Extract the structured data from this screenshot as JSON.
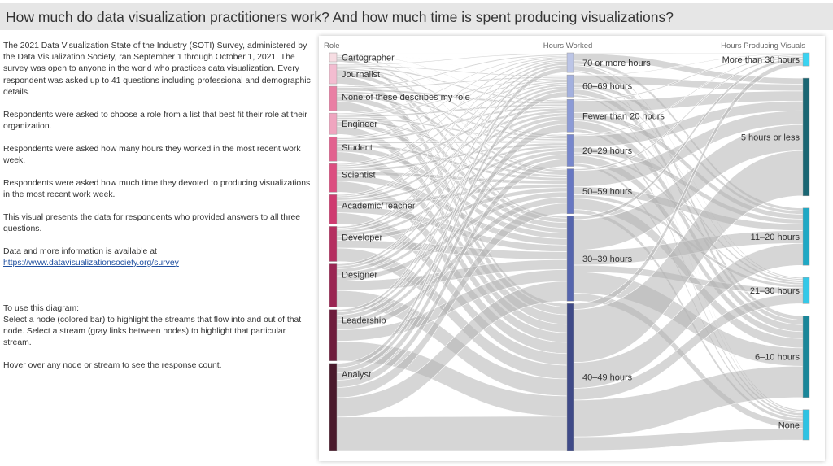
{
  "header": {
    "title": "How much do data visualization practitioners work? And how much time is spent producing visualizations?"
  },
  "description": {
    "paragraphs": [
      "The 2021 Data Visualization State of the Industry (SOTI) Survey, administered by the Data Visualization Society, ran September 1 through October 1, 2021. The survey was open to anyone in the world who practices data visualization. Every respondent was asked up to 41 questions including professional and demographic details.",
      "Respondents were asked to choose a role from a list that best fit their role at their organization.",
      "Respondents were asked how many hours they worked in the most recent work week.",
      "Respondents were asked how much time they devoted to producing visualizations in the most recent work week.",
      "This visual presents the data for respondents who provided answers to all three questions."
    ],
    "data_intro": "Data and more information is available at",
    "link": "https://www.datavisualizationsociety.org/survey",
    "instructions_title": "To use this diagram:",
    "instructions": "Select a node (colored bar) to highlight the streams that flow into and out of that node. Select a stream (gray links between nodes) to highlight that particular stream.",
    "hover_note": "Hover over any node or stream to see the response count."
  },
  "chart_data": {
    "type": "sankey",
    "columns": [
      {
        "label": "Role",
        "nodes": [
          {
            "name": "Cartographer",
            "relative_size": 11,
            "color": "#f7dde3"
          },
          {
            "name": "Journalist",
            "relative_size": 24,
            "color": "#f3bcd0"
          },
          {
            "name": "None of these describes my role",
            "relative_size": 30,
            "color": "#e97fa4"
          },
          {
            "name": "Engineer",
            "relative_size": 26,
            "color": "#efa5bf"
          },
          {
            "name": "Student",
            "relative_size": 30,
            "color": "#e2628f"
          },
          {
            "name": "Scientist",
            "relative_size": 35,
            "color": "#dc4e80"
          },
          {
            "name": "Academic/Teacher",
            "relative_size": 36,
            "color": "#cf3a70"
          },
          {
            "name": "Developer",
            "relative_size": 43,
            "color": "#b52e60"
          },
          {
            "name": "Designer",
            "relative_size": 53,
            "color": "#9a2552"
          },
          {
            "name": "Leadership",
            "relative_size": 63,
            "color": "#6e1c3c"
          },
          {
            "name": "Analyst",
            "relative_size": 107,
            "color": "#4a1a2c"
          }
        ]
      },
      {
        "label": "Hours Worked",
        "nodes": [
          {
            "name": "70 or more hours",
            "relative_size": 24,
            "color": "#bcc5e6"
          },
          {
            "name": "60–69 hours",
            "relative_size": 27,
            "color": "#a3b0de"
          },
          {
            "name": "Fewer than 20 hours",
            "relative_size": 40,
            "color": "#8c9bd6"
          },
          {
            "name": "20–29 hours",
            "relative_size": 39,
            "color": "#7787cc"
          },
          {
            "name": "50–59 hours",
            "relative_size": 55,
            "color": "#6777c2"
          },
          {
            "name": "30–39 hours",
            "relative_size": 104,
            "color": "#5565ad"
          },
          {
            "name": "40–49 hours",
            "relative_size": 180,
            "color": "#3f4a88"
          }
        ]
      },
      {
        "label": "Hours Producing Visuals",
        "nodes": [
          {
            "name": "More than 30 hours",
            "relative_size": 16,
            "color": "#3ad3f1"
          },
          {
            "name": "5 hours or less",
            "relative_size": 144,
            "color": "#1a6673"
          },
          {
            "name": "11–20 hours",
            "relative_size": 70,
            "color": "#1fa8c4"
          },
          {
            "name": "21–30 hours",
            "relative_size": 32,
            "color": "#34c8e8"
          },
          {
            "name": "6–10 hours",
            "relative_size": 100,
            "color": "#1a8699"
          },
          {
            "name": "None",
            "relative_size": 37,
            "color": "#2ec2e2"
          }
        ]
      }
    ],
    "link_color": "#b4b4b4"
  }
}
